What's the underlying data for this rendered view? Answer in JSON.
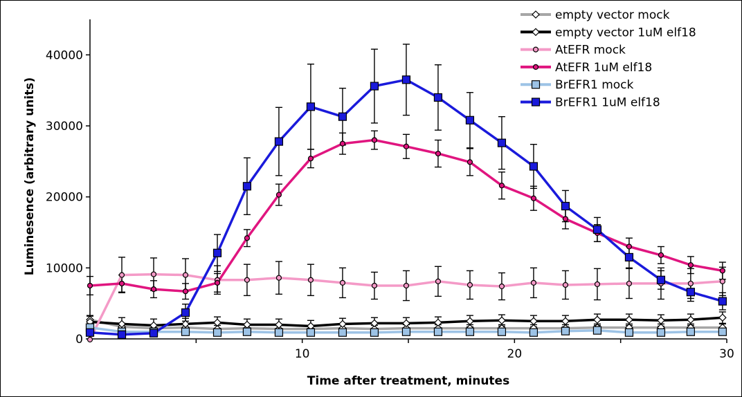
{
  "chart_data": {
    "type": "line",
    "xlabel": "Time after treatment, minutes",
    "ylabel": "Luminesence (arbitrary units)",
    "xlim": [
      0,
      30
    ],
    "ylim": [
      0,
      45000
    ],
    "x_ticks": [
      10,
      20,
      30
    ],
    "y_ticks": [
      0,
      10000,
      20000,
      30000,
      40000
    ],
    "grid": false,
    "legend_position": "top-right",
    "x": [
      0,
      1.5,
      3.0,
      4.5,
      6.0,
      7.4,
      8.9,
      10.4,
      11.9,
      13.4,
      14.9,
      16.4,
      17.9,
      19.4,
      20.9,
      22.4,
      23.9,
      25.4,
      26.9,
      28.3,
      29.8
    ],
    "series": [
      {
        "name": "empty vector mock",
        "color": "#a6a6a6",
        "marker": "diamond",
        "values": [
          2700,
          1700,
          1500,
          1600,
          1400,
          1500,
          1400,
          1400,
          1500,
          1400,
          1500,
          1500,
          1500,
          1500,
          1500,
          1500,
          1600,
          1600,
          1600,
          1600,
          1600
        ],
        "errors": [
          600,
          500,
          500,
          500,
          500,
          500,
          500,
          500,
          500,
          500,
          500,
          500,
          500,
          500,
          500,
          500,
          500,
          500,
          500,
          500,
          500
        ]
      },
      {
        "name": "empty vector 1uM elf18",
        "color": "#000000",
        "marker": "diamond",
        "values": [
          2400,
          2100,
          1900,
          2100,
          2300,
          2000,
          2000,
          1800,
          2100,
          2200,
          2200,
          2300,
          2500,
          2600,
          2500,
          2500,
          2700,
          2700,
          2600,
          2700,
          3000
        ],
        "errors": [
          800,
          900,
          900,
          800,
          800,
          800,
          800,
          800,
          800,
          800,
          800,
          800,
          800,
          800,
          800,
          800,
          800,
          800,
          800,
          800,
          800
        ]
      },
      {
        "name": "AtEFR mock",
        "color": "#f49ac7",
        "marker": "circle",
        "values": [
          -100,
          9000,
          9100,
          9000,
          8300,
          8300,
          8600,
          8300,
          7900,
          7500,
          7500,
          8100,
          7600,
          7400,
          7900,
          7600,
          7700,
          7800,
          7800,
          7800,
          8100
        ],
        "errors": [
          0,
          2500,
          2300,
          2300,
          2000,
          2200,
          2300,
          2200,
          2100,
          1900,
          2100,
          2100,
          2000,
          1900,
          2100,
          2000,
          2200,
          2100,
          2200,
          2100,
          2000
        ]
      },
      {
        "name": "AtEFR 1uM elf18",
        "color": "#e0157f",
        "marker": "circle",
        "values": [
          7500,
          7800,
          7000,
          6700,
          7900,
          14200,
          20300,
          25400,
          27500,
          28000,
          27100,
          26100,
          24900,
          21600,
          19800,
          16900,
          14900,
          13000,
          11800,
          10400,
          9600
        ],
        "errors": [
          1300,
          1200,
          1200,
          1100,
          1300,
          1200,
          1500,
          1300,
          1500,
          1300,
          1700,
          1900,
          1900,
          1900,
          1700,
          1400,
          1200,
          1200,
          1200,
          1200,
          1200
        ]
      },
      {
        "name": "BrEFR1 mock",
        "color": "#9dc3e6",
        "marker": "square",
        "values": [
          1600,
          1000,
          1000,
          1000,
          900,
          1000,
          900,
          900,
          900,
          900,
          1000,
          1000,
          1000,
          1000,
          900,
          1100,
          1200,
          900,
          900,
          1000,
          1000
        ],
        "errors": [
          400,
          400,
          400,
          400,
          400,
          400,
          400,
          400,
          400,
          400,
          400,
          400,
          400,
          400,
          400,
          400,
          400,
          400,
          400,
          400,
          400
        ]
      },
      {
        "name": "BrEFR1 1uM elf18",
        "color": "#1a1adb",
        "marker": "square",
        "values": [
          900,
          600,
          800,
          3700,
          12100,
          21500,
          27800,
          32700,
          31300,
          35600,
          36500,
          34000,
          30800,
          27600,
          24300,
          18700,
          15400,
          11500,
          8300,
          6600,
          5300
        ],
        "errors": [
          300,
          300,
          300,
          1200,
          2600,
          4000,
          4800,
          6000,
          4000,
          5200,
          5000,
          4600,
          3900,
          3700,
          3100,
          2200,
          1700,
          1500,
          1300,
          1300,
          1200
        ]
      }
    ]
  }
}
